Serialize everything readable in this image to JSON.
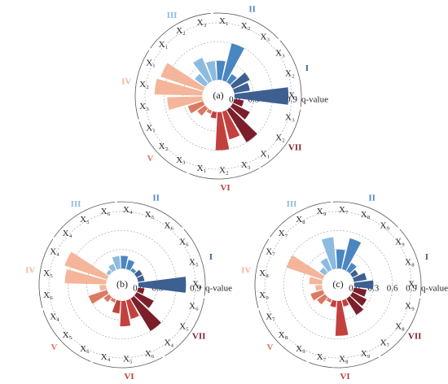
{
  "chart_data": [
    {
      "type": "polar-bar",
      "title": "(a)",
      "axis_label": "q-value",
      "ylim": [
        0,
        0.9
      ],
      "yticks": [
        {
          "value": 0,
          "label": "0.0"
        },
        0.3,
        0.6,
        0.9
      ],
      "series": [
        {
          "name": "I",
          "color": "#3d5f92",
          "categories": [
            "X₁",
            "X₂",
            "X₃"
          ],
          "values": [
            0.85,
            0.25,
            0.3
          ]
        },
        {
          "name": "II",
          "color": "#4a86c0",
          "categories": [
            "X₃",
            "X₂",
            "X₁"
          ],
          "values": [
            0.15,
            0.6,
            0.3
          ]
        },
        {
          "name": "III",
          "color": "#8dbbe0",
          "categories": [
            "X₃",
            "X₂",
            "X₁"
          ],
          "values": [
            0.3,
            0.4,
            0.2
          ]
        },
        {
          "name": "IV",
          "color": "#f5b59a",
          "categories": [
            "X₁",
            "X₂",
            "X₃"
          ],
          "values": [
            0.7,
            0.75,
            0.55
          ]
        },
        {
          "name": "V",
          "color": "#db7a62",
          "categories": [
            "X₁",
            "X₂",
            "X₃"
          ],
          "values": [
            0.25,
            0.15,
            0.05
          ]
        },
        {
          "name": "VI",
          "color": "#c2413f",
          "categories": [
            "X₁",
            "X₂",
            "X₃"
          ],
          "values": [
            0.1,
            0.6,
            0.45
          ]
        },
        {
          "name": "VII",
          "color": "#7b1f2b",
          "categories": [
            "X₁",
            "X₂",
            "X₃"
          ],
          "values": [
            0.6,
            0.3,
            0.15
          ]
        }
      ]
    },
    {
      "type": "polar-bar",
      "title": "(b)",
      "axis_label": "q-value",
      "ylim": [
        0,
        0.9
      ],
      "yticks": [
        {
          "value": 0,
          "label": "0.0"
        },
        0.3,
        0.6,
        0.9
      ],
      "series": [
        {
          "name": "I",
          "color": "#3d5f92",
          "categories": [
            "X₄",
            "X₅",
            "X₆"
          ],
          "values": [
            0.75,
            0.1,
            0.1
          ]
        },
        {
          "name": "II",
          "color": "#4a86c0",
          "categories": [
            "X₆",
            "X₅",
            "X₄"
          ],
          "values": [
            0.05,
            0.15,
            0.2
          ]
        },
        {
          "name": "III",
          "color": "#8dbbe0",
          "categories": [
            "X₆",
            "X₅",
            "X₄"
          ],
          "values": [
            0.2,
            0.1,
            0.05
          ]
        },
        {
          "name": "IV",
          "color": "#f5b59a",
          "categories": [
            "X₄",
            "X₅",
            "X₆"
          ],
          "values": [
            0.7,
            0.65,
            0.1
          ]
        },
        {
          "name": "V",
          "color": "#db7a62",
          "categories": [
            "X₄",
            "X₅",
            "X₆"
          ],
          "values": [
            0.3,
            0.1,
            0.05
          ]
        },
        {
          "name": "VI",
          "color": "#c2413f",
          "categories": [
            "X₄",
            "X₅",
            "X₆"
          ],
          "values": [
            0.2,
            0.4,
            0.3
          ]
        },
        {
          "name": "VII",
          "color": "#7b1f2b",
          "categories": [
            "X₄",
            "X₅",
            "X₆"
          ],
          "values": [
            0.6,
            0.3,
            0.1
          ]
        }
      ]
    },
    {
      "type": "polar-bar",
      "title": "(c)",
      "axis_label": "q-value",
      "ylim": [
        0,
        0.9
      ],
      "yticks": [
        {
          "value": 0,
          "label": "0.0"
        },
        0.3,
        0.6,
        0.9
      ],
      "series": [
        {
          "name": "I",
          "color": "#3d5f92",
          "categories": [
            "X₇",
            "X₈",
            "X₉"
          ],
          "values": [
            0.3,
            0.2,
            0.1
          ]
        },
        {
          "name": "II",
          "color": "#4a86c0",
          "categories": [
            "X₉",
            "X₈",
            "X₇"
          ],
          "values": [
            0.15,
            0.5,
            0.3
          ]
        },
        {
          "name": "III",
          "color": "#8dbbe0",
          "categories": [
            "X₉",
            "X₈",
            "X₇"
          ],
          "values": [
            0.5,
            0.2,
            0.1
          ]
        },
        {
          "name": "IV",
          "color": "#f5b59a",
          "categories": [
            "X₇",
            "X₈",
            "X₉"
          ],
          "values": [
            0.6,
            0.2,
            0.1
          ]
        },
        {
          "name": "V",
          "color": "#db7a62",
          "categories": [
            "X₇",
            "X₈",
            "X₉"
          ],
          "values": [
            0.2,
            0.15,
            0.05
          ]
        },
        {
          "name": "VI",
          "color": "#c2413f",
          "categories": [
            "X₇",
            "X₈",
            "X₉"
          ],
          "values": [
            0.1,
            0.55,
            0.1
          ]
        },
        {
          "name": "VII",
          "color": "#7b1f2b",
          "categories": [
            "X₇",
            "X₈",
            "X₉"
          ],
          "values": [
            0.3,
            0.25,
            0.2
          ]
        }
      ]
    }
  ]
}
